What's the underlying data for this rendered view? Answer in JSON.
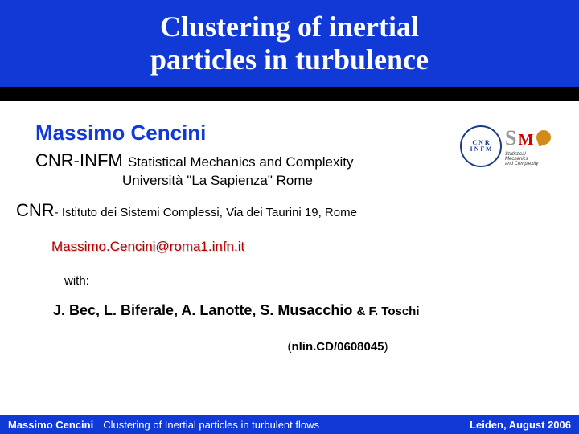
{
  "title": {
    "line1": "Clustering of inertial",
    "line2": "particles in turbulence"
  },
  "presenter": "Massimo Cencini",
  "affiliation1": {
    "prefix": "CNR-INFM ",
    "rest": "Statistical Mechanics and Complexity",
    "line2": "Università \"La Sapienza\" Rome"
  },
  "affiliation2": {
    "prefix": "CNR",
    "rest": "- Istituto dei Sistemi Complessi, Via dei Taurini 19, Rome"
  },
  "email": "Massimo.Cencini@roma1.infn.it",
  "with_label": "with:",
  "collaborators": {
    "names": "J. Bec, L. Biferale, A. Lanotte, S. Musacchio ",
    "last": "& F. Toschi"
  },
  "reference": {
    "open": "(",
    "code": "nlin.CD/0608045",
    "close": ")"
  },
  "logo": {
    "cnr_text": "C N R\nI N F M",
    "s": "S",
    "m": "M",
    "caption": "Statistical\nMechanics\nand Complexity"
  },
  "footer": {
    "author": "Massimo Cencini",
    "talk": "Clustering of Inertial particles in turbulent flows",
    "venue": "Leiden, August 2006"
  },
  "colors": {
    "blue": "#1039d6",
    "black": "#000000",
    "white": "#ffffff",
    "email_red": "#b60000"
  }
}
